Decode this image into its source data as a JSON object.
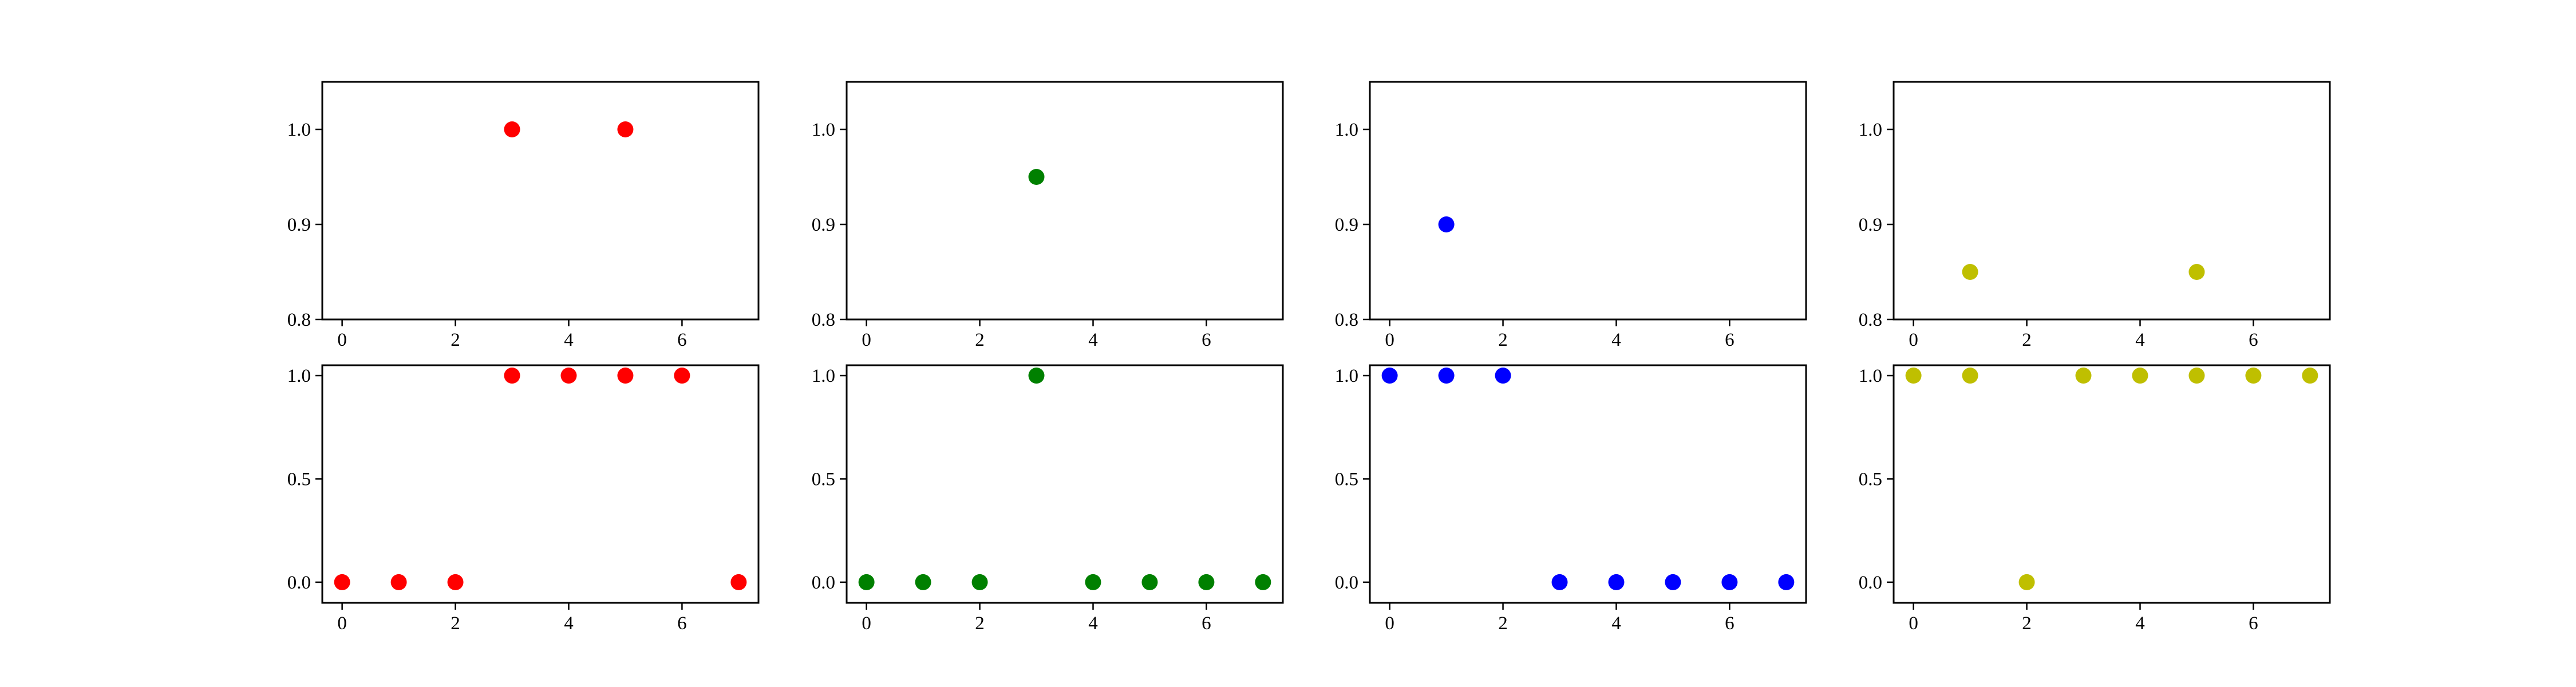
{
  "chart_data": [
    {
      "type": "scatter",
      "color": "#ff0000",
      "x": [
        3,
        5
      ],
      "y": [
        1.0,
        1.0
      ],
      "xlim": [
        -0.35,
        7.35
      ],
      "ylim": [
        0.8,
        1.05
      ],
      "xticks": [
        "0",
        "2",
        "4",
        "6"
      ],
      "yticks": [
        "0.8",
        "0.9",
        "1.0"
      ],
      "grid": false
    },
    {
      "type": "scatter",
      "color": "#008000",
      "x": [
        3
      ],
      "y": [
        0.95
      ],
      "xlim": [
        -0.35,
        7.35
      ],
      "ylim": [
        0.8,
        1.05
      ],
      "xticks": [
        "0",
        "2",
        "4",
        "6"
      ],
      "yticks": [
        "0.8",
        "0.9",
        "1.0"
      ],
      "grid": false
    },
    {
      "type": "scatter",
      "color": "#0000ff",
      "x": [
        1
      ],
      "y": [
        0.9
      ],
      "xlim": [
        -0.35,
        7.35
      ],
      "ylim": [
        0.8,
        1.05
      ],
      "xticks": [
        "0",
        "2",
        "4",
        "6"
      ],
      "yticks": [
        "0.8",
        "0.9",
        "1.0"
      ],
      "grid": false
    },
    {
      "type": "scatter",
      "color": "#bfbf00",
      "x": [
        1,
        5
      ],
      "y": [
        0.85,
        0.85
      ],
      "xlim": [
        -0.35,
        7.35
      ],
      "ylim": [
        0.8,
        1.05
      ],
      "xticks": [
        "0",
        "2",
        "4",
        "6"
      ],
      "yticks": [
        "0.8",
        "0.9",
        "1.0"
      ],
      "grid": false
    },
    {
      "type": "scatter",
      "color": "#ff0000",
      "x": [
        0,
        1,
        2,
        3,
        4,
        5,
        6,
        7
      ],
      "y": [
        0,
        0,
        0,
        1,
        1,
        1,
        1,
        0
      ],
      "xlim": [
        -0.35,
        7.35
      ],
      "ylim": [
        -0.1,
        1.05
      ],
      "xticks": [
        "0",
        "2",
        "4",
        "6"
      ],
      "yticks": [
        "0.0",
        "0.5",
        "1.0"
      ],
      "grid": false
    },
    {
      "type": "scatter",
      "color": "#008000",
      "x": [
        0,
        1,
        2,
        3,
        4,
        5,
        6,
        7
      ],
      "y": [
        0,
        0,
        0,
        1,
        0,
        0,
        0,
        0
      ],
      "xlim": [
        -0.35,
        7.35
      ],
      "ylim": [
        -0.1,
        1.05
      ],
      "xticks": [
        "0",
        "2",
        "4",
        "6"
      ],
      "yticks": [
        "0.0",
        "0.5",
        "1.0"
      ],
      "grid": false
    },
    {
      "type": "scatter",
      "color": "#0000ff",
      "x": [
        0,
        1,
        2,
        3,
        4,
        5,
        6,
        7
      ],
      "y": [
        1,
        1,
        1,
        0,
        0,
        0,
        0,
        0
      ],
      "xlim": [
        -0.35,
        7.35
      ],
      "ylim": [
        -0.1,
        1.05
      ],
      "xticks": [
        "0",
        "2",
        "4",
        "6"
      ],
      "yticks": [
        "0.0",
        "0.5",
        "1.0"
      ],
      "grid": false
    },
    {
      "type": "scatter",
      "color": "#bfbf00",
      "x": [
        0,
        1,
        2,
        3,
        4,
        5,
        6,
        7
      ],
      "y": [
        1,
        1,
        0,
        1,
        1,
        1,
        1,
        1
      ],
      "xlim": [
        -0.35,
        7.35
      ],
      "ylim": [
        -0.1,
        1.05
      ],
      "xticks": [
        "0",
        "2",
        "4",
        "6"
      ],
      "yticks": [
        "0.0",
        "0.5",
        "1.0"
      ],
      "grid": false
    }
  ]
}
